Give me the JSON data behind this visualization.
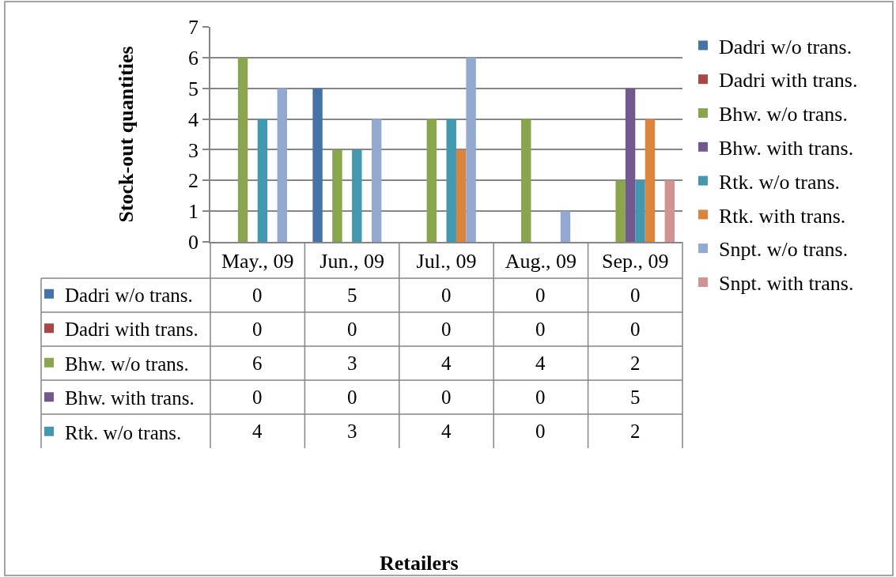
{
  "chart_data": {
    "type": "bar",
    "ylabel": "Stock-out quantities",
    "annotations": [
      "Retailers"
    ],
    "categories": [
      "May., 09",
      "Jun., 09",
      "Jul., 09",
      "Aug., 09",
      "Sep., 09"
    ],
    "series": [
      {
        "name": "Dadri w/o trans.",
        "color": "#4572a7",
        "values": [
          0,
          5,
          0,
          0,
          0
        ],
        "value_labels": [
          "0",
          "5",
          "0",
          "0",
          "0"
        ]
      },
      {
        "name": "Dadri with trans.",
        "color": "#aa4643",
        "values": [
          0,
          0,
          0,
          0,
          0
        ],
        "value_labels": [
          "0",
          "0",
          "0",
          "0",
          "0"
        ]
      },
      {
        "name": "Bhw. w/o trans.",
        "color": "#89a54e",
        "values": [
          6,
          3,
          4,
          4,
          2
        ],
        "value_labels": [
          "6",
          "3",
          "4",
          "4",
          "2"
        ]
      },
      {
        "name": "Bhw. with trans.",
        "color": "#71588f",
        "values": [
          0,
          0,
          0,
          0,
          5
        ],
        "value_labels": [
          "0",
          "0",
          "0",
          "0",
          "5"
        ]
      },
      {
        "name": "Rtk. w/o trans.",
        "color": "#4198af",
        "values": [
          4,
          3,
          4,
          0,
          2
        ],
        "value_labels": [
          "4",
          "3",
          "4",
          "0",
          "2"
        ]
      },
      {
        "name": "Rtk. with trans.",
        "color": "#db843d",
        "values": [
          0,
          0,
          3,
          0,
          4
        ]
      },
      {
        "name": "Snpt. w/o trans.",
        "color": "#93a9cf",
        "values": [
          5,
          4,
          6,
          1,
          0
        ]
      },
      {
        "name": "Snpt. with trans.",
        "color": "#d19392",
        "values": [
          0,
          0,
          0,
          0,
          2
        ]
      }
    ],
    "ylim": [
      0,
      7
    ],
    "yticks": [
      0,
      1,
      2,
      3,
      4,
      5,
      6,
      7
    ],
    "grid": "y",
    "legend": "right"
  }
}
